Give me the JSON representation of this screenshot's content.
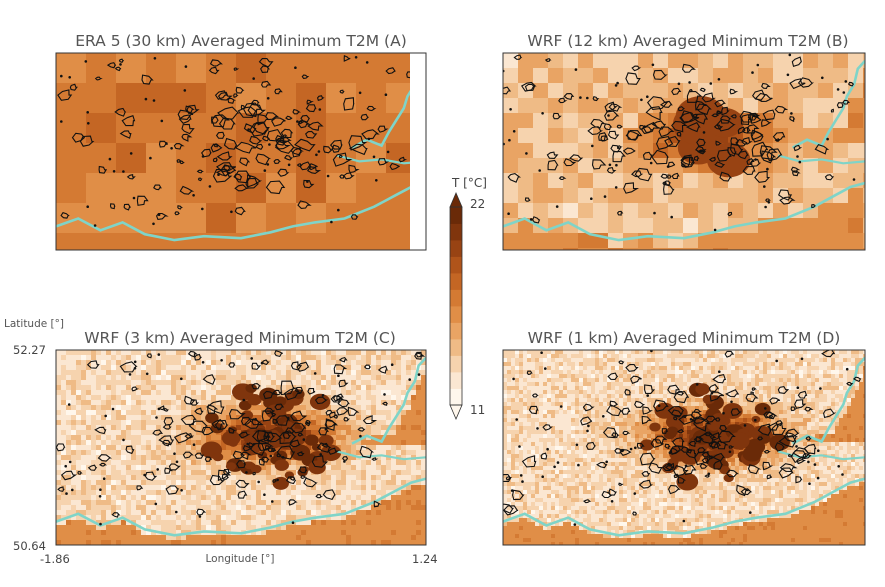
{
  "chart_data": {
    "type": "heatmap",
    "colorbar": {
      "label": "T [°C]",
      "min": 11,
      "max": 22,
      "tick_labels": [
        "22",
        "11"
      ],
      "extend": "both",
      "levels": 12,
      "colors": [
        "#fff7ec",
        "#fbe7d2",
        "#f6d3ae",
        "#efbb86",
        "#e9a464",
        "#e08e47",
        "#d47a33",
        "#c46624",
        "#b0541a",
        "#984313",
        "#80350d",
        "#6a2a08"
      ]
    },
    "axes": {
      "xlabel": "Longitude [°]",
      "ylabel": "Latitude [°]",
      "xlim": [
        -1.86,
        1.24
      ],
      "ylim": [
        50.64,
        52.27
      ],
      "x_tick_labels": [
        "-1.86",
        "1.24"
      ],
      "y_tick_labels": [
        "52.27",
        "50.64"
      ]
    },
    "panels": [
      {
        "title": "ERA 5 (30 km) Averaged Minimum T2M (A)",
        "resolution_km": 30,
        "center_temp": 16.5,
        "edge_temp": 16,
        "peak_temp": 17.5
      },
      {
        "title": "WRF (12 km) Averaged Minimum T2M (B)",
        "resolution_km": 12,
        "center_temp": 20,
        "edge_temp": 14,
        "peak_temp": 20.5
      },
      {
        "title": "WRF (3 km) Averaged Minimum T2M (C)",
        "resolution_km": 3,
        "center_temp": 21,
        "edge_temp": 13,
        "peak_temp": 21.5
      },
      {
        "title": "WRF (1 km) Averaged Minimum T2M (D)",
        "resolution_km": 1,
        "center_temp": 21,
        "edge_temp": 13,
        "peak_temp": 21.5
      }
    ],
    "colors": {
      "coastline": "#7fd4c8",
      "contour": "#111111",
      "frame": "#333333"
    }
  }
}
